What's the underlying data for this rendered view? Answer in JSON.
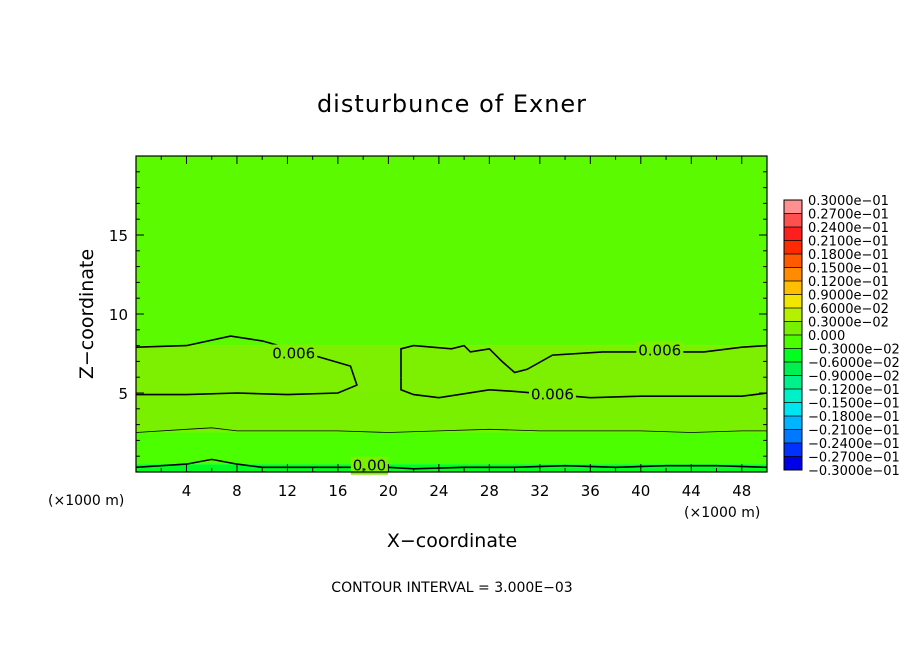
{
  "chart_data": {
    "type": "heatmap",
    "title": "disturbunce of Exner",
    "xlabel": "X−coordinate",
    "ylabel": "Z−coordinate",
    "x_unit": "(×1000 m)",
    "footer": "CONTOUR INTERVAL = 3.000E−03",
    "xlim": [
      0,
      50
    ],
    "ylim": [
      0,
      20
    ],
    "x_ticks": [
      4,
      8,
      12,
      16,
      20,
      24,
      28,
      32,
      36,
      40,
      44,
      48
    ],
    "y_ticks": [
      5,
      10,
      15
    ],
    "contour_interval": 0.003,
    "colorbar": {
      "levels": [
        {
          "label": "0.3000e−01",
          "value": 0.03,
          "color": "#ff9090"
        },
        {
          "label": "0.2700e−01",
          "value": 0.027,
          "color": "#ff5050"
        },
        {
          "label": "0.2400e−01",
          "value": 0.024,
          "color": "#ff1e1e"
        },
        {
          "label": "0.2100e−01",
          "value": 0.021,
          "color": "#ff2a00"
        },
        {
          "label": "0.1800e−01",
          "value": 0.018,
          "color": "#ff5a00"
        },
        {
          "label": "0.1500e−01",
          "value": 0.015,
          "color": "#ff8c00"
        },
        {
          "label": "0.1200e−01",
          "value": 0.012,
          "color": "#ffbe00"
        },
        {
          "label": "0.9000e−02",
          "value": 0.009,
          "color": "#f0e600"
        },
        {
          "label": "0.6000e−02",
          "value": 0.006,
          "color": "#b4f000"
        },
        {
          "label": "0.3000e−02",
          "value": 0.003,
          "color": "#78f000"
        },
        {
          "label": "0.000",
          "value": 0.0,
          "color": "#4bff00"
        },
        {
          "label": "−0.3000e−02",
          "value": -0.003,
          "color": "#00ff1e"
        },
        {
          "label": "−0.6000e−02",
          "value": -0.006,
          "color": "#00f050"
        },
        {
          "label": "−0.9000e−02",
          "value": -0.009,
          "color": "#00f08c"
        },
        {
          "label": "−0.1200e−01",
          "value": -0.012,
          "color": "#00f0c8"
        },
        {
          "label": "−0.1500e−01",
          "value": -0.015,
          "color": "#00e6f0"
        },
        {
          "label": "−0.1800e−01",
          "value": -0.018,
          "color": "#00b4ff"
        },
        {
          "label": "−0.2100e−01",
          "value": -0.021,
          "color": "#0078ff"
        },
        {
          "label": "−0.2400e−01",
          "value": -0.024,
          "color": "#0032ff"
        },
        {
          "label": "−0.2700e−01",
          "value": -0.027,
          "color": "#0000e6"
        },
        {
          "label": "−0.3000e−01",
          "value": -0.03,
          "color": "#6400b4"
        }
      ]
    },
    "bands": [
      {
        "z_from": 0.0,
        "z_to": 0.5,
        "value": -0.001,
        "color": "#00ff1e"
      },
      {
        "z_from": 0.5,
        "z_to": 2.5,
        "value": 0.001,
        "color": "#4bff00"
      },
      {
        "z_from": 2.5,
        "z_to": 5.0,
        "value": 0.004,
        "color": "#78f000"
      },
      {
        "z_from": 5.0,
        "z_to": 8.0,
        "value": 0.006,
        "color": "#7cf000"
      },
      {
        "z_from": 8.0,
        "z_to": 20.0,
        "value": 0.004,
        "color": "#5cfa00"
      }
    ],
    "contours": [
      {
        "level_label": "0.00",
        "label_at": [
          18.5,
          0.4
        ],
        "points": [
          [
            0,
            0.3
          ],
          [
            2,
            0.4
          ],
          [
            4,
            0.5
          ],
          [
            6,
            0.8
          ],
          [
            8,
            0.5
          ],
          [
            10,
            0.3
          ],
          [
            14,
            0.3
          ],
          [
            18,
            0.3
          ],
          [
            20,
            0.3
          ],
          [
            22,
            0.2
          ],
          [
            26,
            0.3
          ],
          [
            30,
            0.3
          ],
          [
            34,
            0.4
          ],
          [
            38,
            0.3
          ],
          [
            42,
            0.4
          ],
          [
            46,
            0.4
          ],
          [
            50,
            0.3
          ]
        ]
      },
      {
        "level_label": "",
        "label_at": null,
        "points": [
          [
            0,
            2.5
          ],
          [
            4,
            2.7
          ],
          [
            6,
            2.8
          ],
          [
            8,
            2.6
          ],
          [
            12,
            2.6
          ],
          [
            16,
            2.6
          ],
          [
            20,
            2.5
          ],
          [
            24,
            2.6
          ],
          [
            28,
            2.7
          ],
          [
            32,
            2.6
          ],
          [
            36,
            2.6
          ],
          [
            40,
            2.6
          ],
          [
            44,
            2.5
          ],
          [
            48,
            2.6
          ],
          [
            50,
            2.6
          ]
        ]
      },
      {
        "level_label": "0.006",
        "label_at": [
          12.5,
          7.5
        ],
        "points": [
          [
            0,
            7.9
          ],
          [
            4,
            8.0
          ],
          [
            7.5,
            8.6
          ],
          [
            10,
            8.3
          ],
          [
            14,
            7.4
          ],
          [
            17,
            6.7
          ],
          [
            17.5,
            5.5
          ],
          [
            16,
            5.0
          ],
          [
            12,
            4.9
          ],
          [
            8,
            5.0
          ],
          [
            4,
            4.9
          ],
          [
            0,
            4.9
          ]
        ]
      },
      {
        "level_label": "0.006",
        "label_at": [
          41.5,
          7.7
        ],
        "points": [
          [
            21,
            6.0
          ],
          [
            21,
            7.8
          ],
          [
            22,
            8.0
          ],
          [
            25,
            7.8
          ],
          [
            26,
            8.0
          ],
          [
            26.5,
            7.6
          ],
          [
            28,
            7.8
          ],
          [
            29,
            7.0
          ],
          [
            30,
            6.3
          ],
          [
            31,
            6.5
          ],
          [
            33,
            7.4
          ],
          [
            37,
            7.6
          ],
          [
            41,
            7.6
          ],
          [
            45,
            7.6
          ],
          [
            48,
            7.9
          ],
          [
            50,
            8.0
          ]
        ]
      },
      {
        "level_label": "0.006",
        "label_at": [
          33,
          4.9
        ],
        "points": [
          [
            21,
            6.0
          ],
          [
            21,
            5.2
          ],
          [
            22,
            4.9
          ],
          [
            24,
            4.7
          ],
          [
            28,
            5.2
          ],
          [
            30,
            5.1
          ],
          [
            33,
            4.9
          ],
          [
            36,
            4.7
          ],
          [
            40,
            4.8
          ],
          [
            44,
            4.8
          ],
          [
            48,
            4.8
          ],
          [
            50,
            5.0
          ]
        ]
      }
    ]
  }
}
